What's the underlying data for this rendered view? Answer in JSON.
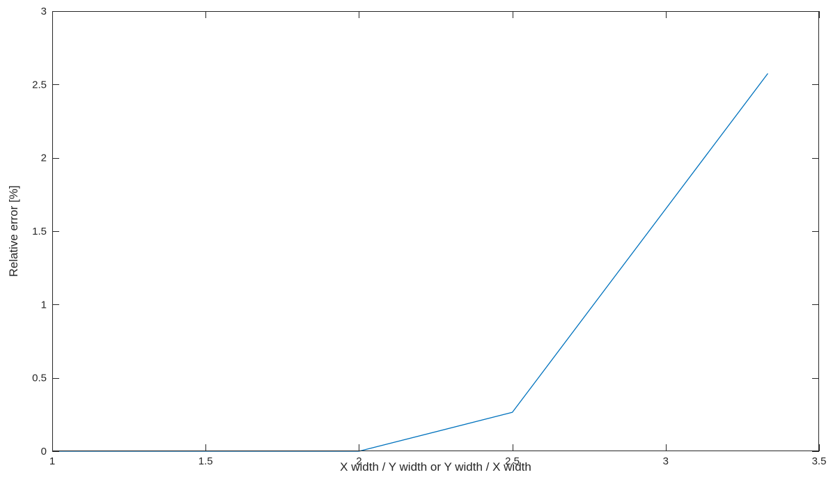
{
  "chart_data": {
    "type": "line",
    "title": "",
    "xlabel": "X width / Y width or Y width / X width",
    "ylabel": "Relative error [%]",
    "xlim": [
      1,
      3.5
    ],
    "ylim": [
      0,
      3
    ],
    "xticks": [
      1,
      1.5,
      2,
      2.5,
      3,
      3.5
    ],
    "xtick_labels": [
      "1",
      "1.5",
      "2",
      "2.5",
      "3",
      "3.5"
    ],
    "yticks": [
      0,
      0.5,
      1,
      1.5,
      2,
      2.5,
      3
    ],
    "ytick_labels": [
      "0",
      "0.5",
      "1",
      "1.5",
      "2",
      "2.5",
      "3"
    ],
    "grid": false,
    "series": [
      {
        "color": "#0072BD",
        "x": [
          1,
          1.25,
          1.5,
          1.75,
          2,
          2.5,
          3.333
        ],
        "y": [
          0,
          0,
          0,
          0,
          0,
          0.265,
          2.575
        ]
      }
    ]
  }
}
